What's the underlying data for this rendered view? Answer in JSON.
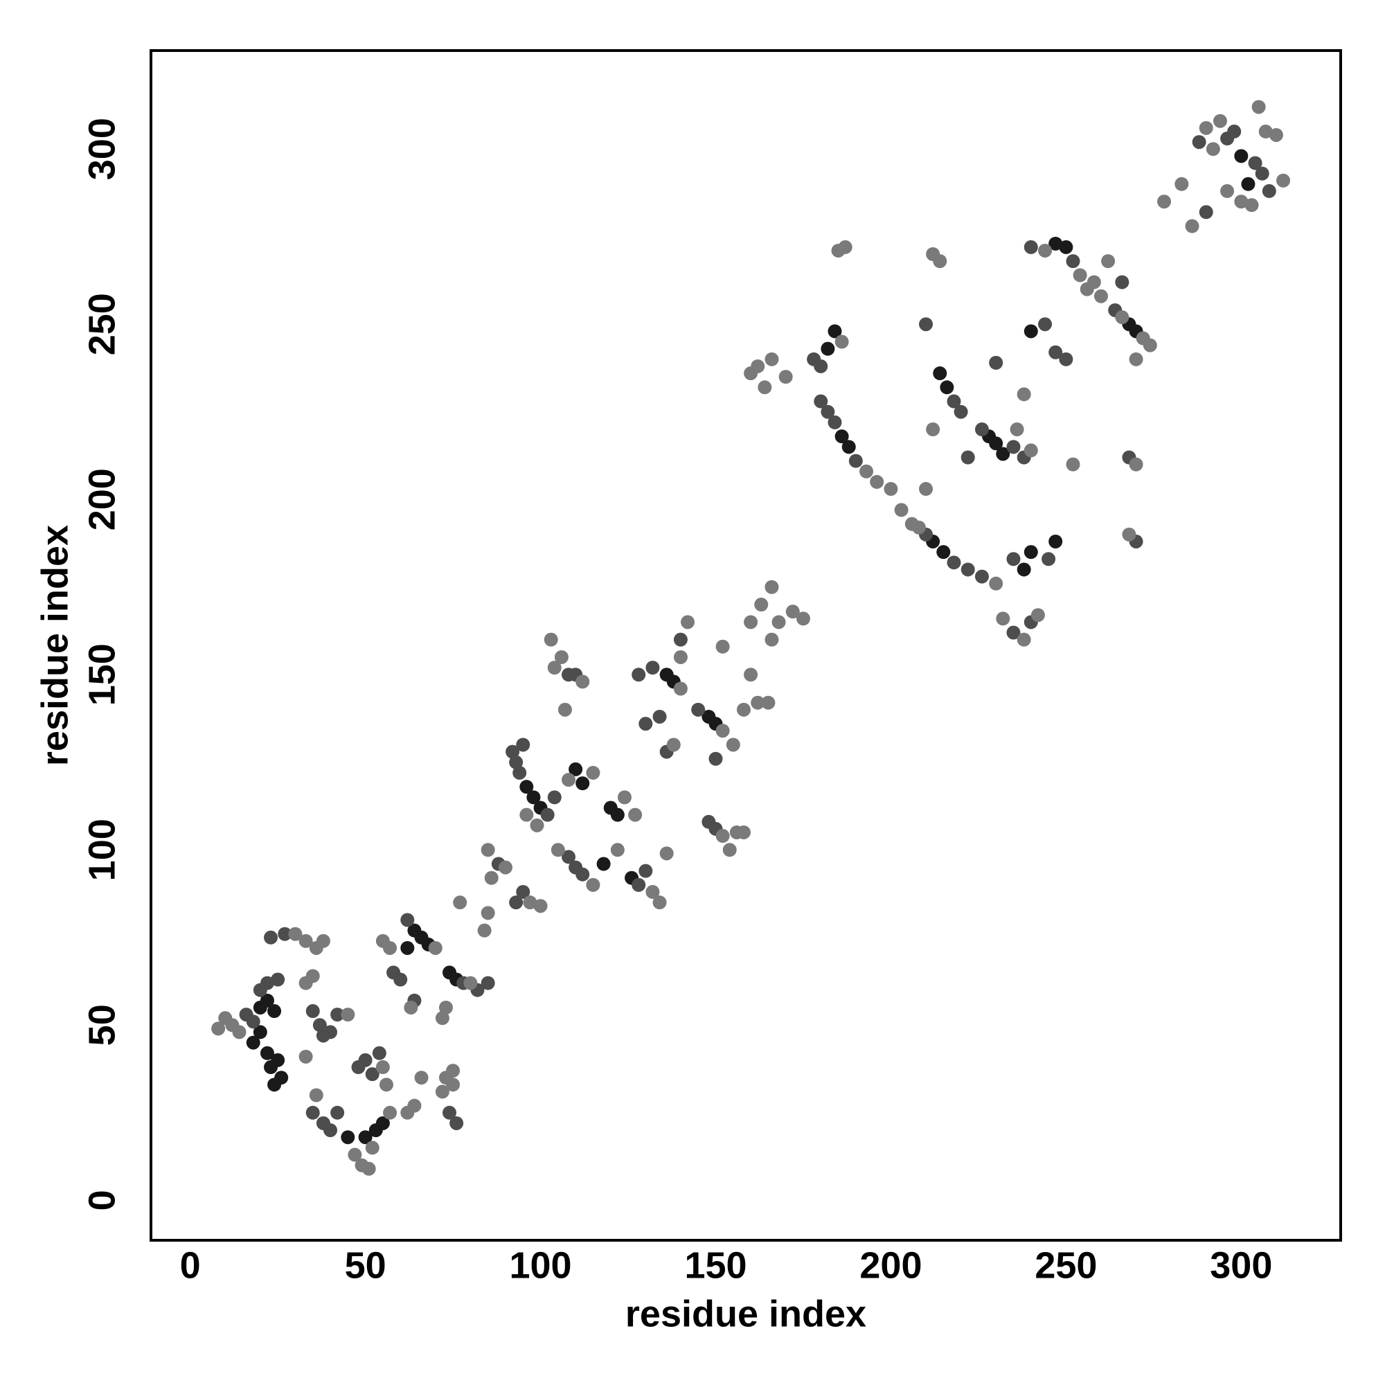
{
  "chart_data": {
    "type": "scatter",
    "x_label": "residue index",
    "y_label": "residue index",
    "xlim": [
      -11.2,
      328.4
    ],
    "ylim": [
      -11.4,
      328.1
    ],
    "xticks": [
      0,
      50,
      100,
      150,
      200,
      250,
      300
    ],
    "yticks": [
      0,
      50,
      100,
      150,
      200,
      250,
      300
    ],
    "series": [
      {
        "color": "#1a1a1a",
        "x": [
          20,
          22,
          24,
          20,
          18,
          22,
          25,
          23,
          26,
          24,
          45,
          50,
          53,
          55,
          62,
          64,
          66,
          68,
          74,
          76,
          96,
          98,
          100,
          110,
          112,
          118,
          120,
          122,
          126,
          136,
          138,
          148,
          150,
          182,
          184,
          186,
          188,
          212,
          215,
          214,
          216,
          228,
          230,
          232,
          238,
          240,
          247,
          240,
          247,
          250,
          268,
          270,
          300,
          302
        ],
        "values": [
          55,
          57,
          54,
          48,
          45,
          42,
          40,
          38,
          35,
          33,
          18,
          18,
          20,
          22,
          72,
          77,
          75,
          73,
          65,
          63,
          118,
          115,
          112,
          123,
          119,
          96,
          112,
          110,
          92,
          150,
          148,
          138,
          136,
          243,
          248,
          218,
          215,
          188,
          185,
          236,
          232,
          218,
          216,
          213,
          180,
          185,
          188,
          248,
          273,
          272,
          250,
          248,
          298,
          290
        ]
      },
      {
        "color": "#4d4d4d",
        "x": [
          16,
          18,
          20,
          22,
          25,
          23,
          27,
          35,
          37,
          40,
          42,
          38,
          35,
          38,
          40,
          42,
          48,
          50,
          52,
          54,
          58,
          60,
          62,
          64,
          78,
          82,
          85,
          74,
          76,
          88,
          93,
          95,
          92,
          93,
          95,
          94,
          102,
          104,
          108,
          110,
          112,
          128,
          130,
          108,
          110,
          128,
          132,
          130,
          134,
          136,
          140,
          145,
          148,
          150,
          150,
          178,
          180,
          180,
          182,
          184,
          190,
          210,
          218,
          222,
          226,
          210,
          218,
          220,
          222,
          226,
          235,
          238,
          235,
          245,
          235,
          240,
          230,
          244,
          247,
          250,
          240,
          252,
          264,
          266,
          268,
          270,
          288,
          296,
          298,
          304,
          306,
          308,
          290
        ],
        "values": [
          53,
          51,
          60,
          62,
          63,
          75,
          76,
          54,
          50,
          48,
          53,
          47,
          25,
          22,
          20,
          25,
          38,
          40,
          36,
          42,
          65,
          63,
          80,
          57,
          62,
          60,
          62,
          25,
          22,
          96,
          85,
          88,
          128,
          125,
          130,
          122,
          110,
          115,
          98,
          95,
          93,
          90,
          94,
          150,
          150,
          150,
          152,
          136,
          138,
          128,
          160,
          140,
          108,
          106,
          126,
          240,
          238,
          228,
          225,
          222,
          211,
          190,
          182,
          180,
          178,
          250,
          228,
          225,
          212,
          220,
          215,
          212,
          183,
          183,
          162,
          165,
          239,
          250,
          242,
          240,
          272,
          268,
          254,
          262,
          212,
          188,
          302,
          303,
          305,
          296,
          293,
          288,
          282
        ]
      },
      {
        "color": "#7a7a7a",
        "x": [
          8,
          10,
          12,
          14,
          30,
          33,
          36,
          38,
          35,
          33,
          45,
          33,
          36,
          47,
          49,
          51,
          52,
          57,
          55,
          56,
          57,
          55,
          63,
          64,
          62,
          66,
          72,
          73,
          80,
          73,
          75,
          75,
          70,
          72,
          77,
          84,
          85,
          86,
          85,
          90,
          97,
          100,
          96,
          99,
          108,
          115,
          104,
          106,
          103,
          112,
          107,
          105,
          115,
          124,
          132,
          134,
          136,
          140,
          138,
          142,
          140,
          152,
          155,
          152,
          154,
          156,
          158,
          152,
          160,
          158,
          162,
          165,
          163,
          166,
          168,
          172,
          175,
          160,
          166,
          127,
          122,
          160,
          162,
          164,
          166,
          170,
          186,
          187,
          185,
          193,
          196,
          200,
          203,
          206,
          208,
          230,
          210,
          212,
          212,
          214,
          236,
          240,
          232,
          238,
          242,
          238,
          244,
          254,
          256,
          258,
          260,
          262,
          266,
          272,
          274,
          270,
          268,
          252,
          270,
          283,
          286,
          290,
          292,
          294,
          300,
          303,
          305,
          307,
          310,
          312,
          278,
          296
        ],
        "values": [
          49,
          52,
          50,
          48,
          76,
          74,
          72,
          74,
          64,
          62,
          53,
          41,
          30,
          13,
          10,
          9,
          15,
          25,
          38,
          33,
          72,
          74,
          55,
          27,
          25,
          35,
          52,
          55,
          62,
          35,
          33,
          37,
          72,
          31,
          85,
          77,
          82,
          92,
          100,
          95,
          85,
          84,
          110,
          107,
          120,
          122,
          152,
          155,
          160,
          148,
          140,
          100,
          90,
          115,
          88,
          85,
          99,
          146,
          130,
          165,
          155,
          134,
          130,
          104,
          100,
          105,
          105,
          158,
          150,
          140,
          142,
          142,
          170,
          175,
          165,
          168,
          166,
          165,
          160,
          110,
          100,
          236,
          238,
          232,
          240,
          235,
          245,
          272,
          271,
          208,
          205,
          203,
          197,
          193,
          192,
          176,
          203,
          220,
          270,
          268,
          220,
          214,
          166,
          160,
          167,
          230,
          271,
          264,
          260,
          262,
          258,
          268,
          252,
          246,
          244,
          210,
          190,
          210,
          240,
          290,
          278,
          306,
          300,
          308,
          285,
          284,
          312,
          305,
          304,
          291,
          285,
          288
        ]
      }
    ]
  }
}
